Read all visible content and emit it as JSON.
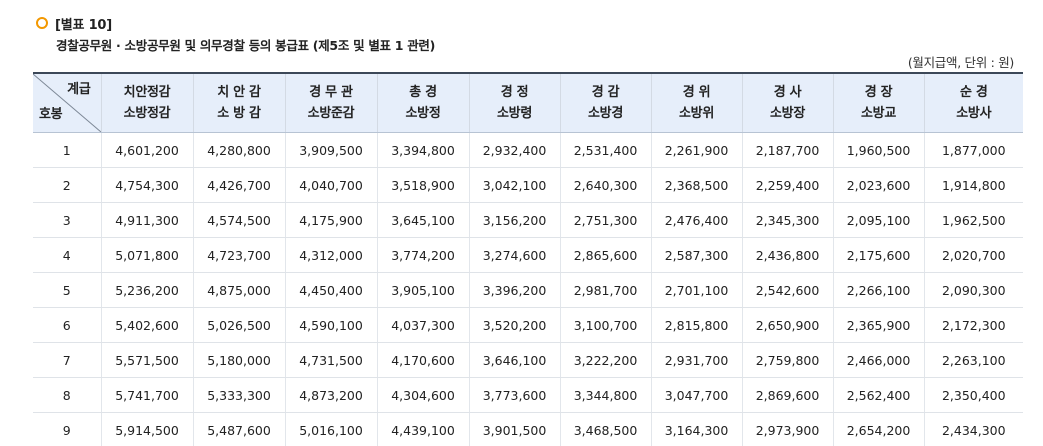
{
  "header": {
    "title": "[별표 10]",
    "subtitle": "경찰공무원 · 소방공무원 및 의무경찰 등의 봉급표 (제5조 및 별표 1 관련)",
    "unit": "(월지급액, 단위 : 원)",
    "bullet_color": "#f39800"
  },
  "table": {
    "corner": {
      "top": "계급",
      "bottom": "호봉"
    },
    "columns": [
      [
        "치안정감",
        "소방정감"
      ],
      [
        "치 안 감",
        "소 방 감"
      ],
      [
        "경 무 관",
        "소방준감"
      ],
      [
        "총 경",
        "소방정"
      ],
      [
        "경 정",
        "소방령"
      ],
      [
        "경 감",
        "소방경"
      ],
      [
        "경 위",
        "소방위"
      ],
      [
        "경 사",
        "소방장"
      ],
      [
        "경 장",
        "소방교"
      ],
      [
        "순 경",
        "소방사"
      ]
    ],
    "rows": [
      {
        "step": "1",
        "values": [
          "4,601,200",
          "4,280,800",
          "3,909,500",
          "3,394,800",
          "2,932,400",
          "2,531,400",
          "2,261,900",
          "2,187,700",
          "1,960,500",
          "1,877,000"
        ]
      },
      {
        "step": "2",
        "values": [
          "4,754,300",
          "4,426,700",
          "4,040,700",
          "3,518,900",
          "3,042,100",
          "2,640,300",
          "2,368,500",
          "2,259,400",
          "2,023,600",
          "1,914,800"
        ]
      },
      {
        "step": "3",
        "values": [
          "4,911,300",
          "4,574,500",
          "4,175,900",
          "3,645,100",
          "3,156,200",
          "2,751,300",
          "2,476,400",
          "2,345,300",
          "2,095,100",
          "1,962,500"
        ]
      },
      {
        "step": "4",
        "values": [
          "5,071,800",
          "4,723,700",
          "4,312,000",
          "3,774,200",
          "3,274,600",
          "2,865,600",
          "2,587,300",
          "2,436,800",
          "2,175,600",
          "2,020,700"
        ]
      },
      {
        "step": "5",
        "values": [
          "5,236,200",
          "4,875,000",
          "4,450,400",
          "3,905,100",
          "3,396,200",
          "2,981,700",
          "2,701,100",
          "2,542,600",
          "2,266,100",
          "2,090,300"
        ]
      },
      {
        "step": "6",
        "values": [
          "5,402,600",
          "5,026,500",
          "4,590,100",
          "4,037,300",
          "3,520,200",
          "3,100,700",
          "2,815,800",
          "2,650,900",
          "2,365,900",
          "2,172,300"
        ]
      },
      {
        "step": "7",
        "values": [
          "5,571,500",
          "5,180,000",
          "4,731,500",
          "4,170,600",
          "3,646,100",
          "3,222,200",
          "2,931,700",
          "2,759,800",
          "2,466,000",
          "2,263,100"
        ]
      },
      {
        "step": "8",
        "values": [
          "5,741,700",
          "5,333,300",
          "4,873,200",
          "4,304,600",
          "3,773,600",
          "3,344,800",
          "3,047,700",
          "2,869,600",
          "2,562,400",
          "2,350,400"
        ]
      },
      {
        "step": "9",
        "values": [
          "5,914,500",
          "5,487,600",
          "5,016,100",
          "4,439,100",
          "3,901,500",
          "3,468,500",
          "3,164,300",
          "2,973,900",
          "2,654,200",
          "2,434,300"
        ]
      }
    ]
  }
}
